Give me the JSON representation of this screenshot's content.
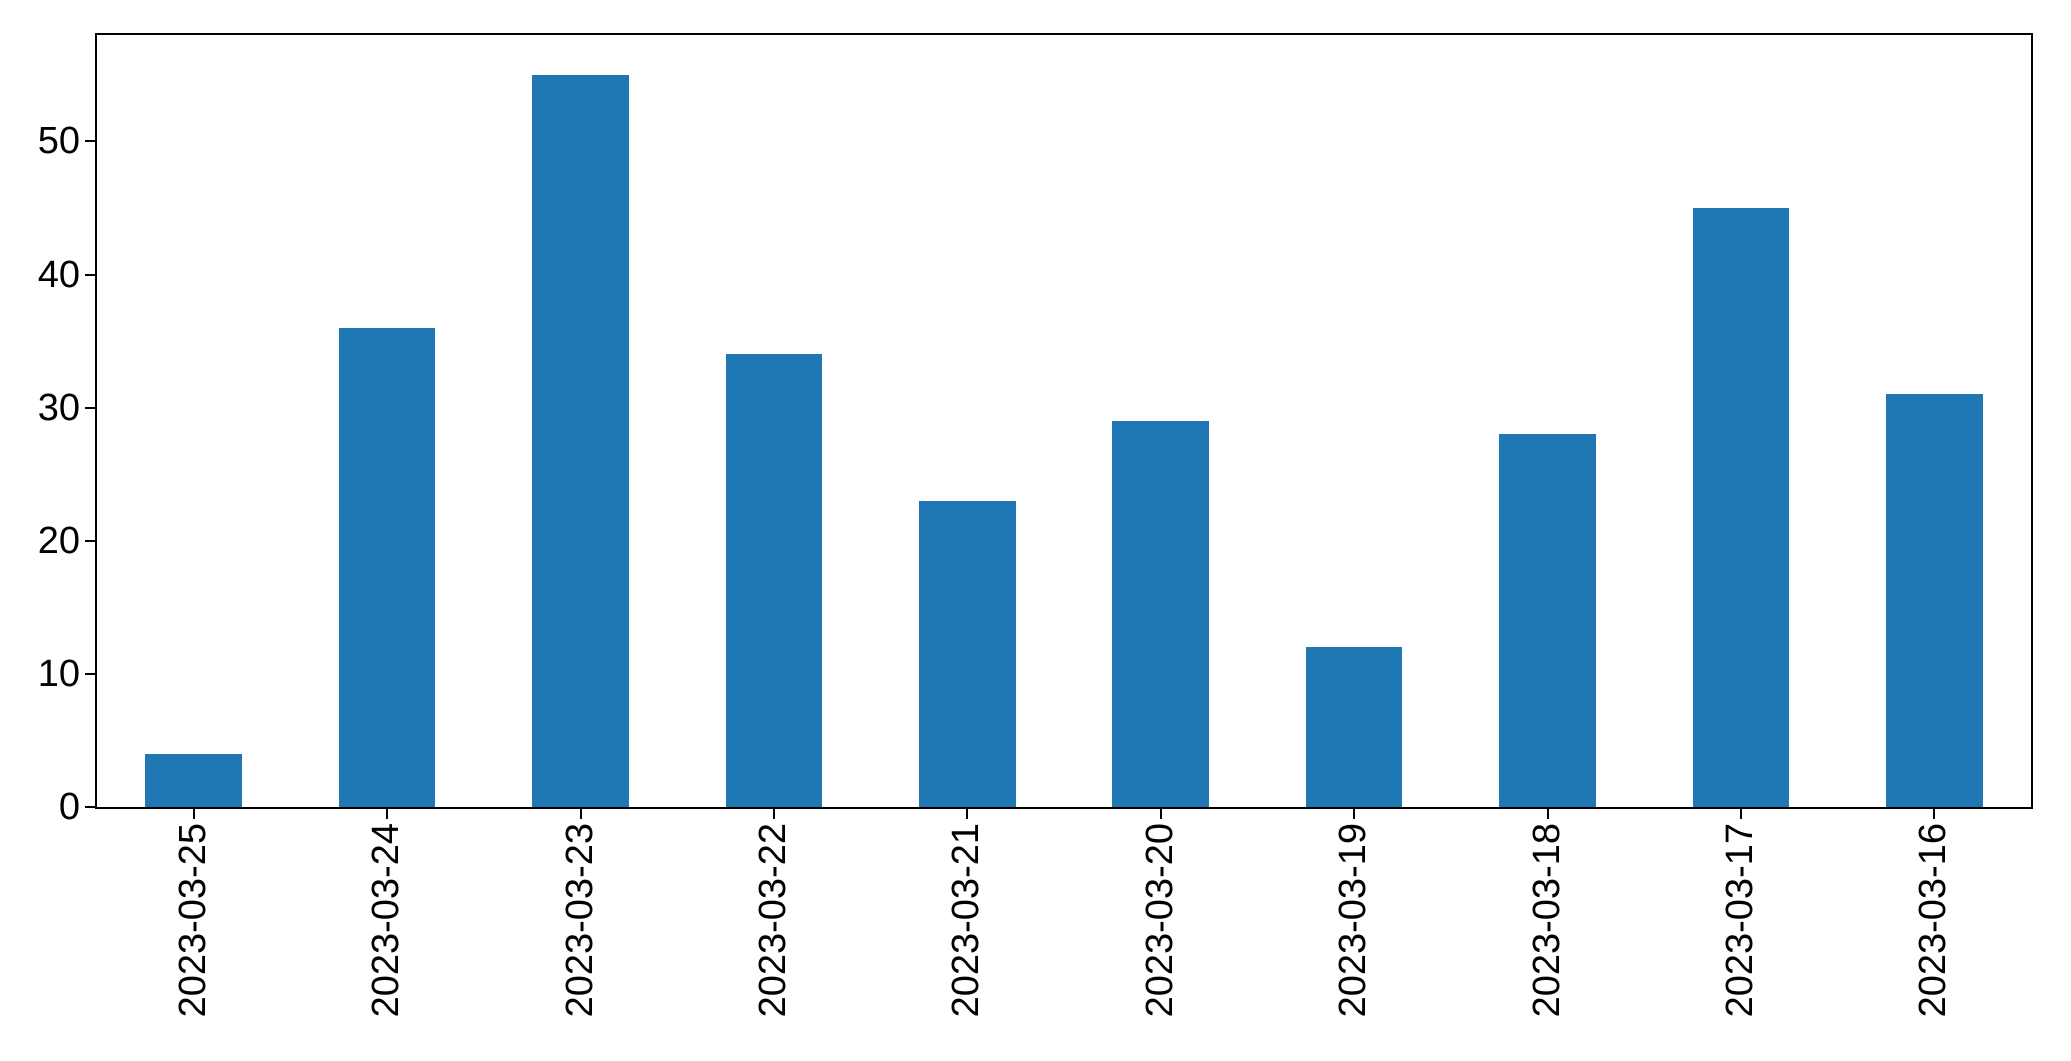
{
  "figure": {
    "background": "#ffffff"
  },
  "chart_data": {
    "type": "bar",
    "categories": [
      "2023-03-25",
      "2023-03-24",
      "2023-03-23",
      "2023-03-22",
      "2023-03-21",
      "2023-03-20",
      "2023-03-19",
      "2023-03-18",
      "2023-03-17",
      "2023-03-16"
    ],
    "values": [
      4,
      36,
      55,
      34,
      23,
      29,
      12,
      28,
      45,
      31
    ],
    "yticks": [
      0,
      10,
      20,
      30,
      40,
      50
    ],
    "ylim": [
      0,
      58
    ],
    "xtick_rotation": 90,
    "bar_width_fraction": 0.5,
    "bar_color": "#1f77b4",
    "axis_color": "#000000",
    "tick_label_color": "#000000",
    "grid": false,
    "legend_position": "none"
  }
}
